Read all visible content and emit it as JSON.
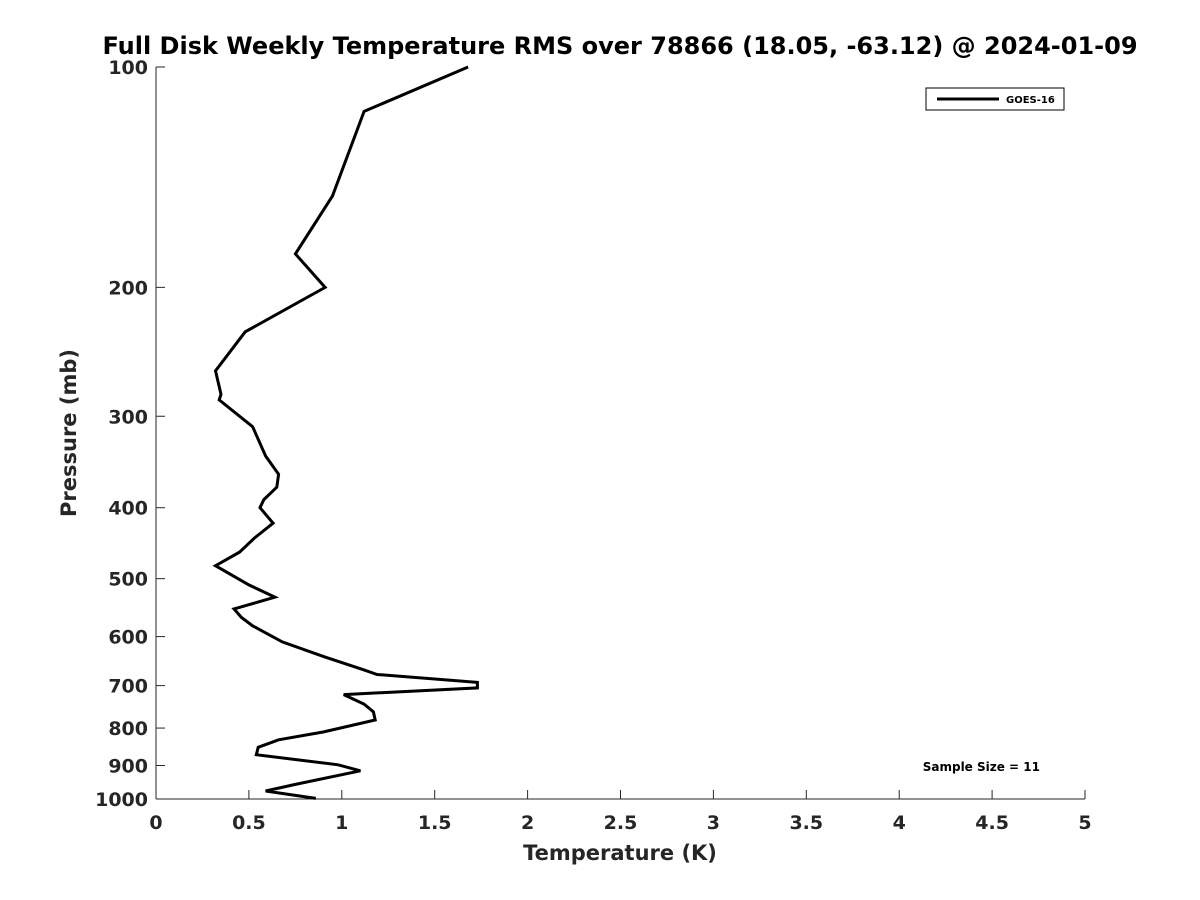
{
  "chart_data": {
    "type": "line",
    "title": "Full Disk Weekly Temperature RMS over 78866 (18.05, -63.12) @ 2024-01-09",
    "xlabel": "Temperature (K)",
    "ylabel": "Pressure (mb)",
    "xlim": [
      0,
      5
    ],
    "ylim": [
      100,
      1000
    ],
    "y_scale": "log",
    "y_reversed": true,
    "grid": false,
    "legend_position": "top-right",
    "x_ticks": [
      0,
      0.5,
      1,
      1.5,
      2,
      2.5,
      3,
      3.5,
      4,
      4.5,
      5
    ],
    "x_tick_labels": [
      "0",
      "0.5",
      "1",
      "1.5",
      "2",
      "2.5",
      "3",
      "3.5",
      "4",
      "4.5",
      "5"
    ],
    "y_ticks": [
      100,
      200,
      300,
      400,
      500,
      600,
      700,
      800,
      900,
      1000
    ],
    "y_tick_labels": [
      "100",
      "200",
      "300",
      "400",
      "500",
      "600",
      "700",
      "800",
      "900",
      "1000"
    ],
    "series": [
      {
        "name": "GOES-16",
        "color": "#000000",
        "x": [
          1.68,
          1.12,
          0.95,
          0.75,
          0.91,
          0.48,
          0.32,
          0.35,
          0.34,
          0.52,
          0.59,
          0.66,
          0.65,
          0.58,
          0.56,
          0.63,
          0.53,
          0.45,
          0.32,
          0.5,
          0.64,
          0.42,
          0.46,
          0.52,
          0.68,
          0.91,
          1.11,
          1.19,
          1.73,
          1.73,
          1.01,
          1.12,
          1.17,
          1.18,
          0.9,
          0.66,
          0.55,
          0.54,
          0.98,
          1.1,
          0.75,
          0.59,
          0.86
        ],
        "y": [
          100,
          115,
          150,
          180,
          200,
          230,
          260,
          280,
          285,
          310,
          340,
          360,
          375,
          390,
          400,
          420,
          440,
          460,
          480,
          510,
          530,
          550,
          565,
          580,
          610,
          640,
          665,
          676,
          693,
          705,
          720,
          742,
          760,
          780,
          810,
          830,
          850,
          870,
          898,
          915,
          955,
          975,
          998
        ]
      }
    ],
    "annotation": "Sample Size = 11"
  }
}
